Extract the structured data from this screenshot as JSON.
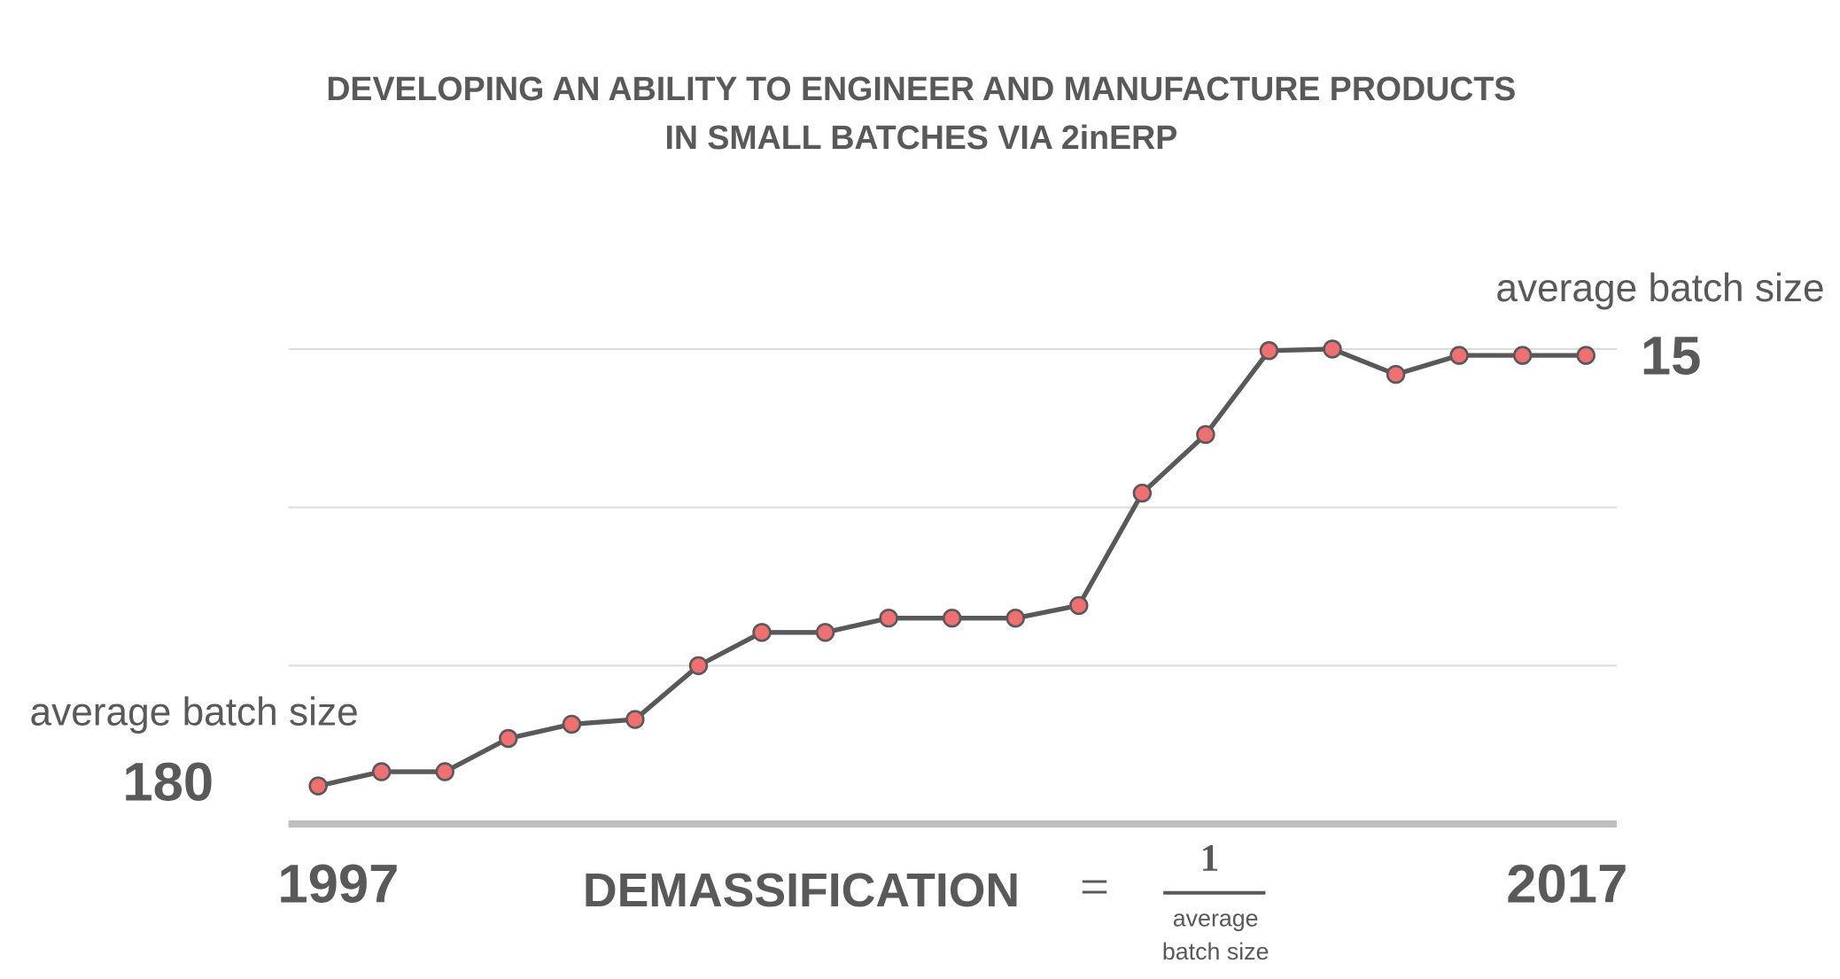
{
  "chart_data": {
    "type": "line",
    "title_lines": [
      "DEVELOPING AN ABILITY TO ENGINEER AND MANUFACTURE PRODUCTS",
      "IN SMALL BATCHES VIA 2inERP"
    ],
    "categories": [
      "1997",
      null,
      null,
      null,
      null,
      null,
      null,
      null,
      null,
      null,
      null,
      null,
      null,
      null,
      null,
      null,
      null,
      null,
      null,
      null,
      "2017"
    ],
    "series": [
      {
        "color": "#595959",
        "marker_color": "#f07072",
        "values": [
          0.24,
          0.33,
          0.33,
          0.54,
          0.63,
          0.66,
          1.0,
          1.21,
          1.21,
          1.3,
          1.3,
          1.3,
          1.38,
          2.09,
          2.46,
          2.99,
          3.0,
          2.84,
          2.96,
          2.96,
          2.96
        ]
      }
    ],
    "ylim": [
      0,
      3
    ],
    "yticks": [
      1,
      2,
      3
    ],
    "show_ytick_labels": false,
    "grid": true,
    "start_label": "average batch size",
    "start_value": 180,
    "end_label": "average batch size",
    "end_value": 15,
    "formula": {
      "name": "DEMASSIFICATION",
      "equals": "=",
      "numerator": "1",
      "denominator_lines": [
        "average",
        "batch size"
      ]
    }
  }
}
